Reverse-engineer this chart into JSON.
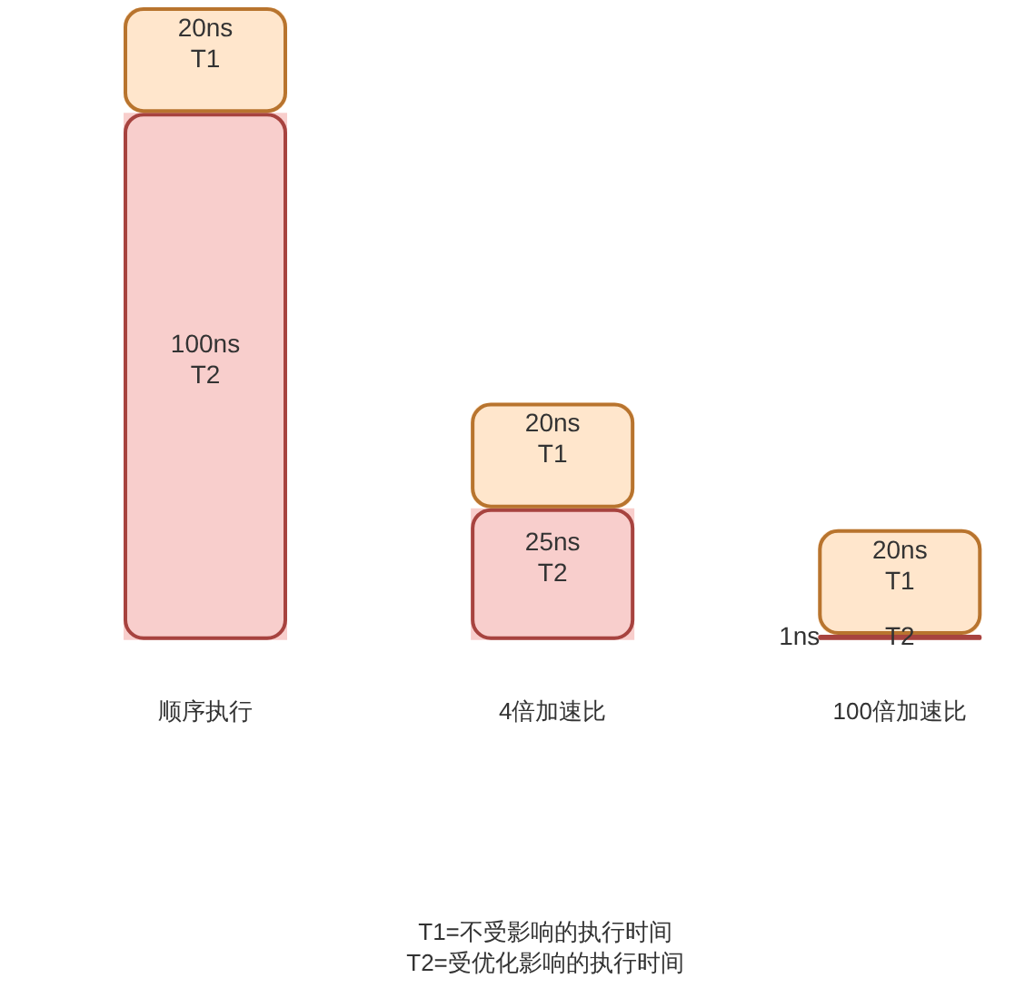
{
  "chart_data": {
    "type": "bar",
    "categories": [
      "顺序执行",
      "4倍加速比",
      "100倍加速比"
    ],
    "stacked": true,
    "series": [
      {
        "name": "T2",
        "color": "#f8cecc",
        "values": [
          100,
          25,
          1
        ],
        "value_labels": [
          "100ns",
          "25ns",
          "1ns"
        ]
      },
      {
        "name": "T1",
        "color": "#ffe6cc",
        "values": [
          20,
          20,
          20
        ],
        "value_labels": [
          "20ns",
          "20ns",
          "20ns"
        ]
      }
    ],
    "annotations": [
      "T1=不受影响的执行时间",
      "T2=受优化影响的执行时间"
    ]
  }
}
